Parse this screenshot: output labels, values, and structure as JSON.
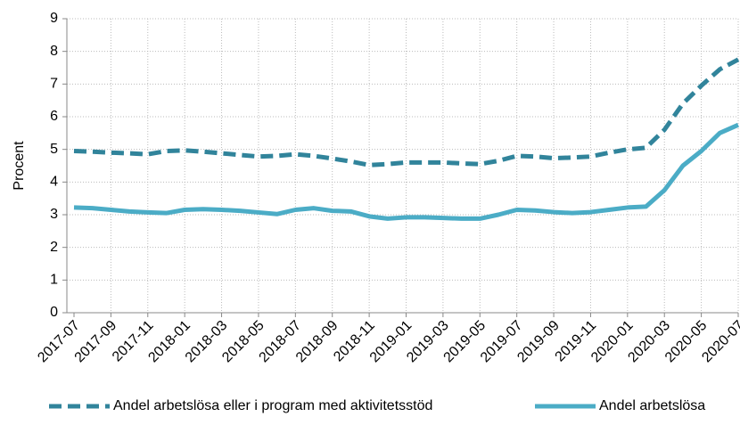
{
  "chart_data": {
    "type": "line",
    "ylabel": "Procent",
    "categories": [
      "2017-07",
      null,
      "2017-09",
      null,
      "2017-11",
      null,
      "2018-01",
      null,
      "2018-03",
      null,
      "2018-05",
      null,
      "2018-07",
      null,
      "2018-09",
      null,
      "2018-11",
      null,
      "2019-01",
      null,
      "2019-03",
      null,
      "2019-05",
      null,
      "2019-07",
      null,
      "2019-09",
      null,
      "2019-11",
      null,
      "2020-01",
      null,
      "2020-03",
      null,
      "2020-05",
      null,
      "2020-07"
    ],
    "series": [
      {
        "name": "Andel arbetslösa eller i program med aktivitetsstöd",
        "color": "#31849b",
        "dashed": true,
        "values": [
          4.95,
          4.93,
          4.9,
          4.88,
          4.85,
          4.95,
          4.97,
          4.93,
          4.88,
          4.83,
          4.78,
          4.8,
          4.85,
          4.8,
          4.72,
          4.63,
          4.52,
          4.55,
          4.6,
          4.6,
          4.6,
          4.57,
          4.55,
          4.65,
          4.8,
          4.78,
          4.73,
          4.75,
          4.78,
          4.9,
          5.0,
          5.05,
          5.6,
          6.4,
          6.95,
          7.45,
          7.75
        ]
      },
      {
        "name": "Andel arbetslösa",
        "color": "#4bacc6",
        "dashed": false,
        "values": [
          3.22,
          3.2,
          3.15,
          3.1,
          3.07,
          3.05,
          3.15,
          3.17,
          3.15,
          3.12,
          3.07,
          3.02,
          3.15,
          3.2,
          3.12,
          3.1,
          2.95,
          2.88,
          2.92,
          2.92,
          2.9,
          2.88,
          2.88,
          3.0,
          3.15,
          3.13,
          3.08,
          3.05,
          3.08,
          3.15,
          3.22,
          3.25,
          3.75,
          4.5,
          4.95,
          5.5,
          5.75
        ]
      }
    ],
    "ylim": [
      0,
      9
    ],
    "yticks": [
      0,
      1,
      2,
      3,
      4,
      5,
      6,
      7,
      8,
      9
    ],
    "grid": true,
    "legend": "bottom"
  }
}
